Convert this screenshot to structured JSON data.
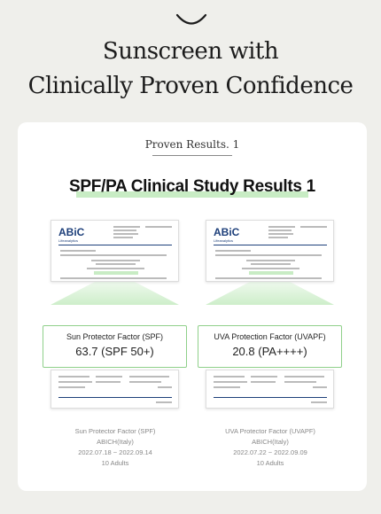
{
  "header": {
    "title_line1": "Sunscreen with",
    "title_line2": "Clinically Proven Confidence"
  },
  "card": {
    "subtitle": "Proven Results. 1",
    "title": "SPF/PA Clinical Study Results 1"
  },
  "studies": [
    {
      "logo": "ABiC",
      "logo_sub": "Lifeanalytics",
      "result_label": "Sun Protector Factor (SPF)",
      "result_value": "63.7 (SPF 50+)",
      "meta": [
        "Sun Protector Factor (SPF)",
        "ABICH(Italy)",
        "2022.07.18 ~ 2022.09.14",
        "10 Adults"
      ]
    },
    {
      "logo": "ABiC",
      "logo_sub": "Lifeanalytics",
      "result_label": "UVA Protection Factor (UVAPF)",
      "result_value": "20.8 (PA++++)",
      "meta": [
        "UVA Protector Factor (UVAPF)",
        "ABICH(Italy)",
        "2022.07.22 ~ 2022.09.09",
        "10 Adults"
      ]
    }
  ],
  "colors": {
    "accent_green": "#8fd08a",
    "highlight": "#c8ecc4",
    "logo_blue": "#1d3f7a"
  }
}
